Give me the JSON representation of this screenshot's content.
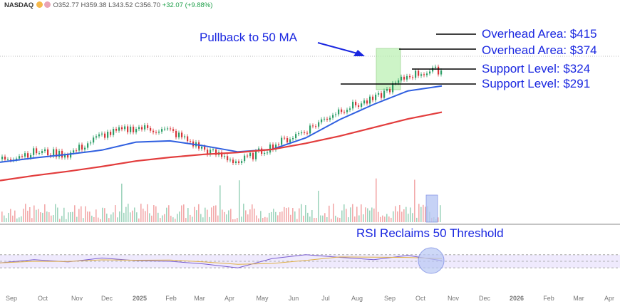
{
  "header": {
    "symbol": "NASDAQ",
    "open": "O352.77",
    "high": "H359.38",
    "low": "L343.52",
    "close": "C356.70",
    "change": "+32.07 (+9.88%)"
  },
  "colors": {
    "up": "#2e9e68",
    "down": "#d8363a",
    "ma50": "#2f5fe0",
    "ma200": "#e23c3c",
    "rsi": "#7a5fd0",
    "rsi_ma": "#e0b24a",
    "annotation": "#1a27e0",
    "highlight_green": "#b9f0b0",
    "highlight_blue": "#b9c8f5"
  },
  "annotations": {
    "pullback": "Pullback to 50 MA",
    "levels": [
      {
        "label": "Overhead Area: $415",
        "price": 415
      },
      {
        "label": "Overhead Area: $374",
        "price": 374
      },
      {
        "label": "Support Level: $324",
        "price": 324
      },
      {
        "label": "Support Level: $291",
        "price": 291
      }
    ],
    "rsi_note": "RSI Reclaims 50 Threshold"
  },
  "chart_data": {
    "type": "line",
    "xaxis_labels": [
      "Sep",
      "Oct",
      "Nov",
      "Dec",
      "2025",
      "Feb",
      "Mar",
      "Apr",
      "May",
      "Jun",
      "Jul",
      "Aug",
      "Sep",
      "Oct",
      "Nov",
      "Dec",
      "2026",
      "Feb",
      "Mar",
      "Apr"
    ],
    "series": [
      {
        "name": "",
        "kind": "price_close",
        "x": [
          "Sep 2024",
          "Oct 2024",
          "Nov 2024",
          "Dec 2024",
          "Jan 2025",
          "Feb 2025",
          "Mar 2025",
          "Apr 2025",
          "May 2025",
          "Jun 2025",
          "Jul 2025",
          "Aug 2025",
          "Sep 2025",
          "Oct 2025"
        ],
        "values": [
          210,
          222,
          218,
          250,
          262,
          256,
          225,
          205,
          232,
          258,
          292,
          308,
          348,
          357
        ]
      },
      {
        "name": "",
        "kind": "ma50",
        "values": [
          205,
          212,
          218,
          225,
          238,
          240,
          232,
          222,
          226,
          245,
          275,
          300,
          322,
          330
        ]
      },
      {
        "name": "",
        "kind": "ma200",
        "values": [
          175,
          183,
          190,
          198,
          207,
          213,
          218,
          221,
          226,
          236,
          248,
          262,
          276,
          287
        ]
      }
    ],
    "rsi": {
      "x": [
        "Sep 2024",
        "Oct 2024",
        "Nov 2024",
        "Dec 2024",
        "Jan 2025",
        "Feb 2025",
        "Mar 2025",
        "Apr 2025",
        "May 2025",
        "Jun 2025",
        "Jul 2025",
        "Aug 2025",
        "Sep 2025",
        "Oct 2025"
      ],
      "values": [
        45,
        55,
        48,
        60,
        52,
        50,
        42,
        30,
        58,
        70,
        62,
        55,
        68,
        52
      ],
      "ylim": [
        0,
        100
      ],
      "bands": [
        30,
        50,
        70
      ]
    },
    "volume_note": "volume bars shown beneath price",
    "grid": false
  }
}
